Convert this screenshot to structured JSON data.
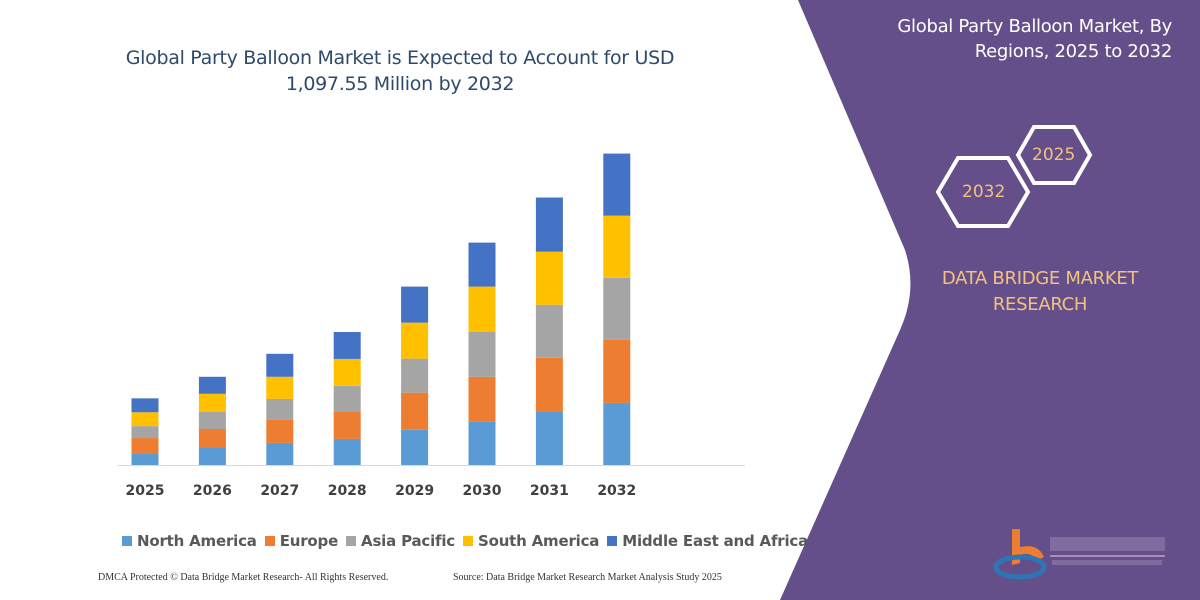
{
  "header": {
    "title": "Global Party Balloon Market is Expected to Account for USD 1,097.55 Million by 2032"
  },
  "side_panel": {
    "title": "Global Party Balloon Market, By Regions, 2025 to 2032",
    "hex_left": "2032",
    "hex_right": "2025",
    "brand": "DATA BRIDGE MARKET RESEARCH",
    "logo_text": "DATA BRIDGE MARKET RESEARCH",
    "background_color": "#654F8A",
    "accent_color": "#F2C27E"
  },
  "footer": {
    "left": "DMCA Protected © Data Bridge Market Research- All Rights Reserved.",
    "right": "Source: Data Bridge Market Research Market Analysis Study 2025"
  },
  "chart_data": {
    "type": "bar",
    "stacked": true,
    "title": "Global Party Balloon Market is Expected to Account for USD 1,097.55 Million by 2032",
    "xlabel": "",
    "ylabel": "",
    "ylim": [
      0,
      1100
    ],
    "grid": false,
    "y_axis_shown": false,
    "legend_position": "bottom",
    "categories": [
      "2025",
      "2026",
      "2027",
      "2028",
      "2029",
      "2030",
      "2031",
      "2032"
    ],
    "series": [
      {
        "name": "North America",
        "color": "#5B9BD5",
        "values": [
          42,
          60,
          78,
          92,
          124,
          152,
          187,
          219
        ]
      },
      {
        "name": "Europe",
        "color": "#ED7D31",
        "values": [
          53,
          67,
          81,
          95,
          131,
          159,
          191,
          222
        ]
      },
      {
        "name": "Asia Pacific",
        "color": "#A5A5A5",
        "values": [
          42,
          60,
          74,
          92,
          120,
          159,
          187,
          219
        ]
      },
      {
        "name": "South America",
        "color": "#FFC000",
        "values": [
          49,
          64,
          78,
          95,
          127,
          159,
          187,
          219
        ]
      },
      {
        "name": "Middle East and Africa",
        "color": "#4472C4",
        "values": [
          49,
          60,
          81,
          95,
          127,
          155,
          191,
          219
        ]
      }
    ]
  }
}
